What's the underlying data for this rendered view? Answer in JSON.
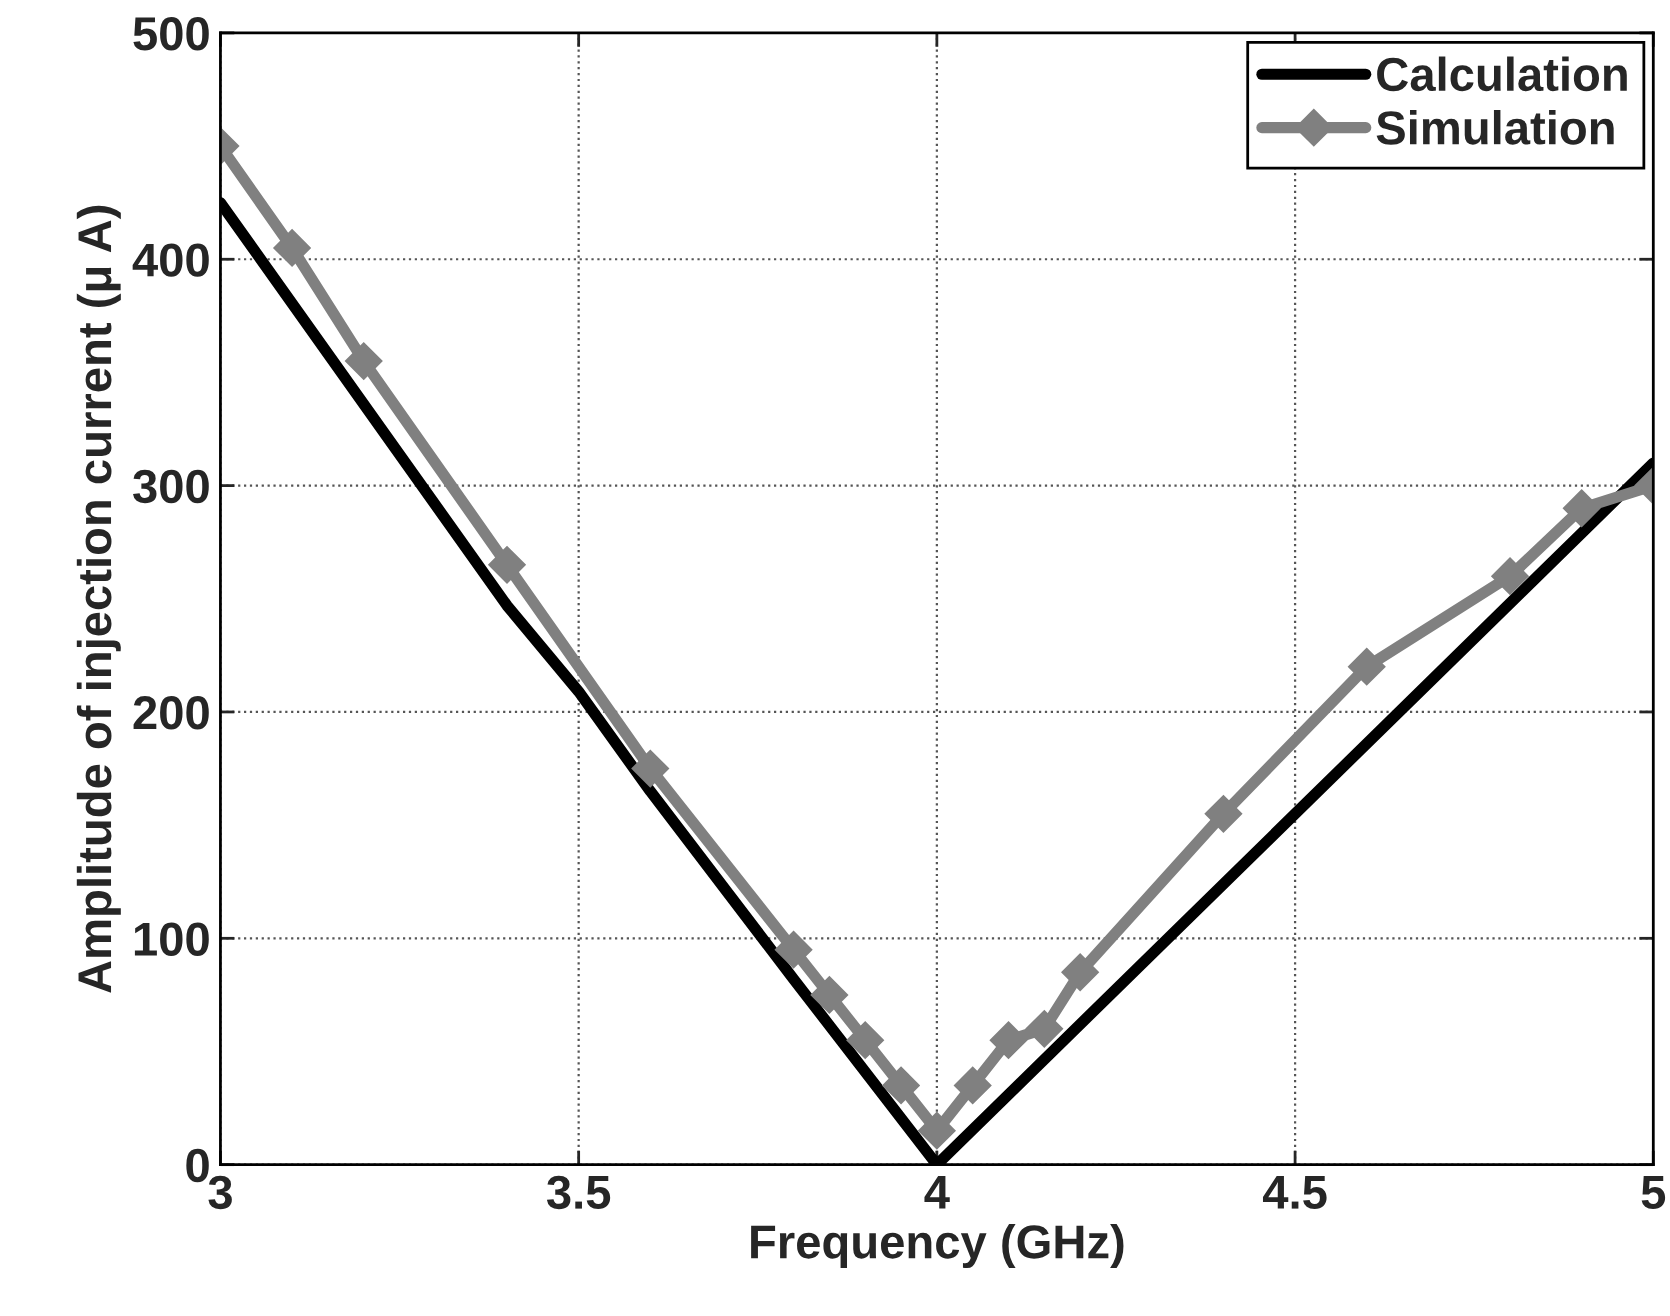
{
  "chart_data": {
    "type": "line",
    "xlabel": "Frequency (GHz)",
    "ylabel": "Amplitude of injection current (μ A)",
    "xlim": [
      3,
      5
    ],
    "xticks": [
      3,
      3.5,
      4,
      4.5,
      5
    ],
    "ylim": [
      0,
      500
    ],
    "yticks": [
      0,
      100,
      200,
      300,
      400,
      500
    ],
    "grid": true,
    "legend": "top right",
    "line_style": "solid",
    "series": [
      {
        "name": "Calculation",
        "color": "#000000",
        "marker": "none",
        "x": [
          3,
          3.4,
          3.5,
          3.6,
          3.8,
          4,
          5
        ],
        "values": [
          425,
          247,
          209,
          165,
          82,
          0,
          310
        ]
      },
      {
        "name": "Simulation",
        "color": "#808080",
        "marker": "diamond",
        "x": [
          3,
          3.1,
          3.2,
          3.4,
          3.6,
          3.8,
          3.85,
          3.9,
          3.95,
          4,
          4.05,
          4.1,
          4.15,
          4.2,
          4.4,
          4.6,
          4.8,
          4.9,
          5
        ],
        "values": [
          450,
          405,
          355,
          265,
          175,
          95,
          75,
          55,
          35,
          15,
          35,
          55,
          60,
          85,
          155,
          220,
          260,
          290,
          300
        ]
      }
    ]
  }
}
